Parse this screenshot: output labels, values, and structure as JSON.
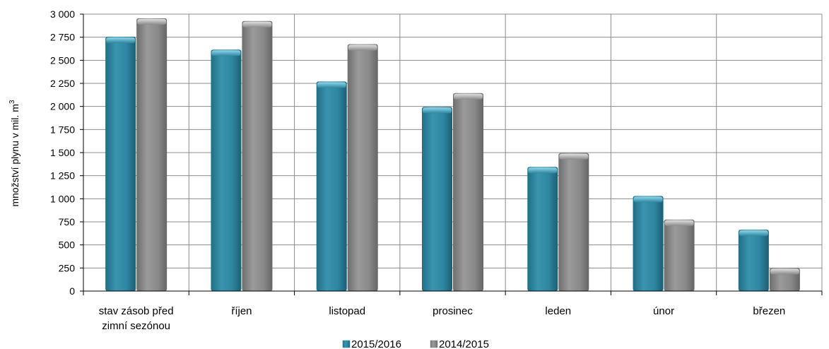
{
  "chart_data": {
    "type": "bar",
    "ylabel": "množství plynu v mil. m",
    "ylabel_sup": "3",
    "ylim": [
      0,
      3000
    ],
    "yticks": [
      0,
      250,
      500,
      750,
      1000,
      1250,
      1500,
      1750,
      2000,
      2250,
      2500,
      2750,
      3000
    ],
    "ytick_labels": [
      "0",
      "250",
      "500",
      "750",
      "1 000",
      "1 250",
      "1 500",
      "1 750",
      "2 000",
      "2 250",
      "2 500",
      "2 750",
      "3 000"
    ],
    "categories": [
      [
        "stav zásob před",
        "zimní sezónou"
      ],
      [
        "říjen"
      ],
      [
        "listopad"
      ],
      [
        "prosinec"
      ],
      [
        "leden"
      ],
      [
        "únor"
      ],
      [
        "březen"
      ]
    ],
    "series": [
      {
        "name": "2015/2016",
        "color": "#2e86a0",
        "values": [
          2755,
          2615,
          2270,
          1995,
          1345,
          1030,
          665
        ]
      },
      {
        "name": "2014/2015",
        "color": "#8a8a8a",
        "values": [
          2955,
          2925,
          2675,
          2145,
          1495,
          775,
          250
        ]
      }
    ],
    "grid": true,
    "legend_position": "bottom"
  }
}
